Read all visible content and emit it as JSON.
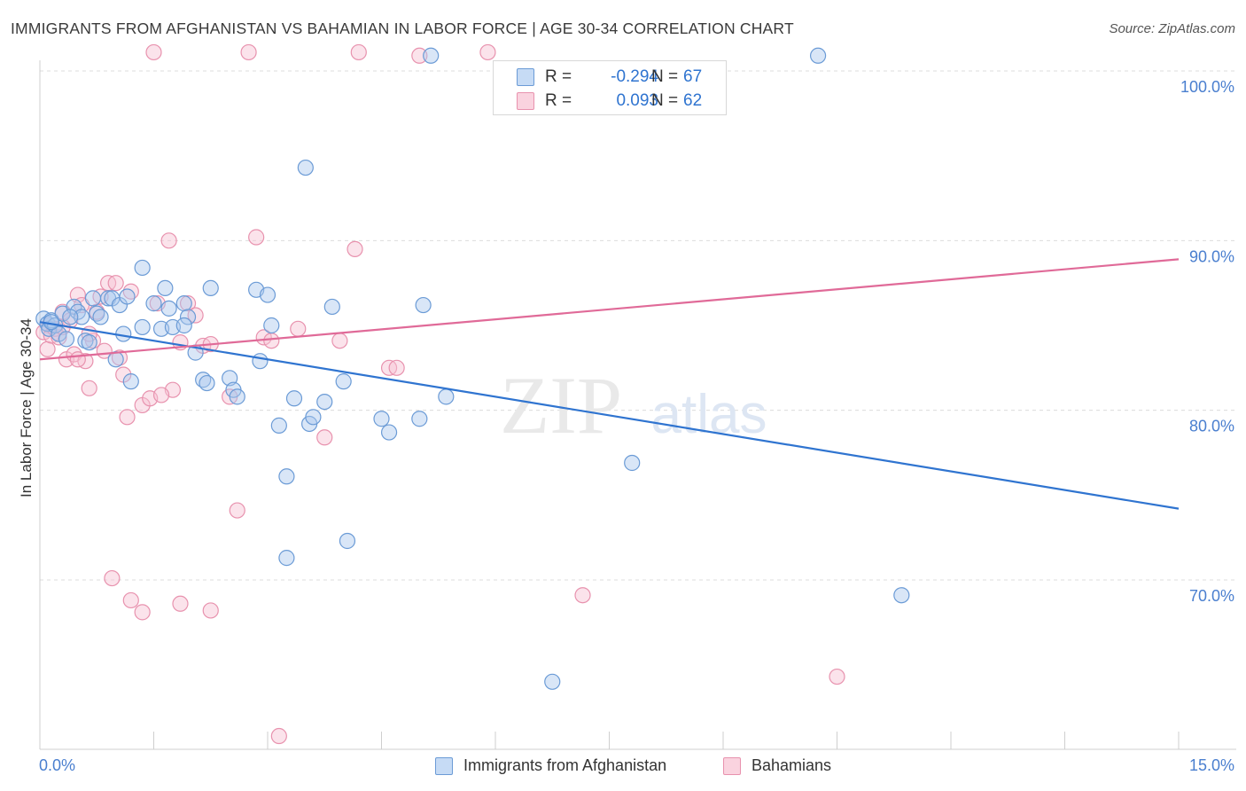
{
  "title": "IMMIGRANTS FROM AFGHANISTAN VS BAHAMIAN IN LABOR FORCE | AGE 30-34 CORRELATION CHART",
  "source": "Source: ZipAtlas.com",
  "watermark": {
    "zip": "ZIP",
    "atlas": "atlas"
  },
  "legend_top": {
    "rows": [
      {
        "r_label": "R =",
        "r_value": "-0.294",
        "n_label": "N =",
        "n_value": "67"
      },
      {
        "r_label": "R =",
        "r_value": "0.093",
        "n_label": "N =",
        "n_value": "62"
      }
    ]
  },
  "legend_bottom": {
    "series_a": "Immigrants from Afghanistan",
    "series_b": "Bahamians"
  },
  "colors": {
    "blue_fill": "#aac8ee",
    "blue_stroke": "#6b9bd6",
    "blue_line": "#2f74d0",
    "pink_fill": "#f6c2d2",
    "pink_stroke": "#e892ae",
    "pink_line": "#e06a98",
    "tick_text": "#4a7fcf",
    "grid": "#dcdcdc"
  },
  "chart_data": {
    "type": "scatter",
    "title": "IMMIGRANTS FROM AFGHANISTAN VS BAHAMIAN IN LABOR FORCE | AGE 30-34 CORRELATION CHART",
    "xlabel": "",
    "ylabel": "In Labor Force | Age 30-34",
    "xlim": [
      0,
      15
    ],
    "ylim": [
      60.5,
      101.5
    ],
    "x_tick_labels": [
      "0.0%",
      "15.0%"
    ],
    "y_ticks": [
      70,
      80,
      90,
      100
    ],
    "y_tick_labels": [
      "70.0%",
      "80.0%",
      "90.0%",
      "100.0%"
    ],
    "series": [
      {
        "name": "Immigrants from Afghanistan",
        "R": -0.294,
        "N": 67,
        "trend": {
          "x": [
            0,
            15
          ],
          "y": [
            85.2,
            74.2
          ]
        },
        "points": [
          [
            0.05,
            85.4
          ],
          [
            0.1,
            85.1
          ],
          [
            0.12,
            84.8
          ],
          [
            0.15,
            85.3
          ],
          [
            0.2,
            85.0
          ],
          [
            0.25,
            84.5
          ],
          [
            0.3,
            85.7
          ],
          [
            0.35,
            84.2
          ],
          [
            0.45,
            86.1
          ],
          [
            0.5,
            85.8
          ],
          [
            0.55,
            85.5
          ],
          [
            0.6,
            84.1
          ],
          [
            0.7,
            86.6
          ],
          [
            0.75,
            85.7
          ],
          [
            0.8,
            85.5
          ],
          [
            0.9,
            86.6
          ],
          [
            0.95,
            86.6
          ],
          [
            1.0,
            83.0
          ],
          [
            1.05,
            86.2
          ],
          [
            1.1,
            84.5
          ],
          [
            1.15,
            86.7
          ],
          [
            1.35,
            88.4
          ],
          [
            1.2,
            81.7
          ],
          [
            1.35,
            84.9
          ],
          [
            1.5,
            86.3
          ],
          [
            1.6,
            84.8
          ],
          [
            1.65,
            87.2
          ],
          [
            1.7,
            86.0
          ],
          [
            1.75,
            84.9
          ],
          [
            1.9,
            86.3
          ],
          [
            1.95,
            85.5
          ],
          [
            2.05,
            83.4
          ],
          [
            2.15,
            81.8
          ],
          [
            2.2,
            81.6
          ],
          [
            2.25,
            87.2
          ],
          [
            2.5,
            81.9
          ],
          [
            2.55,
            81.2
          ],
          [
            2.6,
            80.8
          ],
          [
            2.85,
            87.1
          ],
          [
            2.9,
            82.9
          ],
          [
            3.0,
            86.8
          ],
          [
            3.05,
            85.0
          ],
          [
            3.15,
            79.1
          ],
          [
            3.25,
            76.1
          ],
          [
            3.25,
            71.3
          ],
          [
            3.35,
            80.7
          ],
          [
            3.5,
            94.3
          ],
          [
            3.55,
            79.2
          ],
          [
            3.6,
            79.6
          ],
          [
            3.75,
            80.5
          ],
          [
            3.85,
            86.1
          ],
          [
            4.0,
            81.7
          ],
          [
            4.05,
            72.3
          ],
          [
            4.5,
            79.5
          ],
          [
            4.6,
            78.7
          ],
          [
            5.05,
            86.2
          ],
          [
            5.0,
            79.5
          ],
          [
            5.15,
            100.9
          ],
          [
            5.35,
            80.8
          ],
          [
            7.8,
            76.9
          ],
          [
            6.75,
            64.0
          ],
          [
            10.25,
            100.9
          ],
          [
            11.35,
            69.1
          ],
          [
            0.15,
            85.2
          ],
          [
            0.4,
            85.5
          ],
          [
            0.65,
            84.0
          ],
          [
            1.9,
            85.0
          ]
        ]
      },
      {
        "name": "Bahamians",
        "R": 0.093,
        "N": 62,
        "trend": {
          "x": [
            0,
            15
          ],
          "y": [
            83.0,
            88.9
          ]
        },
        "points": [
          [
            0.05,
            84.6
          ],
          [
            0.1,
            83.6
          ],
          [
            0.12,
            85.0
          ],
          [
            0.15,
            84.4
          ],
          [
            0.2,
            84.8
          ],
          [
            0.25,
            84.3
          ],
          [
            0.3,
            85.8
          ],
          [
            0.35,
            83.0
          ],
          [
            0.4,
            85.3
          ],
          [
            0.45,
            83.3
          ],
          [
            0.5,
            86.8
          ],
          [
            0.55,
            86.2
          ],
          [
            0.6,
            82.9
          ],
          [
            0.65,
            81.3
          ],
          [
            0.7,
            84.1
          ],
          [
            0.75,
            85.8
          ],
          [
            0.8,
            86.7
          ],
          [
            0.85,
            83.5
          ],
          [
            0.9,
            87.5
          ],
          [
            1.0,
            87.5
          ],
          [
            1.05,
            83.1
          ],
          [
            1.1,
            82.1
          ],
          [
            1.15,
            79.6
          ],
          [
            1.2,
            87.0
          ],
          [
            1.35,
            80.3
          ],
          [
            1.45,
            80.7
          ],
          [
            1.55,
            86.3
          ],
          [
            1.7,
            90.0
          ],
          [
            1.75,
            81.2
          ],
          [
            1.85,
            84.0
          ],
          [
            1.95,
            86.3
          ],
          [
            2.05,
            85.6
          ],
          [
            2.15,
            83.8
          ],
          [
            2.25,
            83.9
          ],
          [
            2.5,
            80.8
          ],
          [
            2.6,
            74.1
          ],
          [
            2.85,
            90.2
          ],
          [
            2.95,
            84.3
          ],
          [
            3.05,
            84.1
          ],
          [
            3.4,
            84.8
          ],
          [
            3.75,
            78.4
          ],
          [
            3.95,
            84.1
          ],
          [
            4.15,
            89.5
          ],
          [
            4.6,
            82.5
          ],
          [
            4.7,
            82.5
          ],
          [
            5.0,
            100.9
          ],
          [
            1.5,
            101.1
          ],
          [
            2.75,
            101.1
          ],
          [
            4.2,
            101.1
          ],
          [
            5.9,
            101.1
          ],
          [
            0.95,
            70.1
          ],
          [
            1.2,
            68.8
          ],
          [
            1.35,
            68.1
          ],
          [
            1.85,
            68.6
          ],
          [
            2.25,
            68.2
          ],
          [
            3.15,
            60.8
          ],
          [
            7.15,
            69.1
          ],
          [
            10.5,
            64.3
          ],
          [
            0.3,
            84.9
          ],
          [
            0.65,
            84.5
          ],
          [
            1.6,
            80.9
          ],
          [
            0.5,
            83.0
          ]
        ]
      }
    ]
  }
}
